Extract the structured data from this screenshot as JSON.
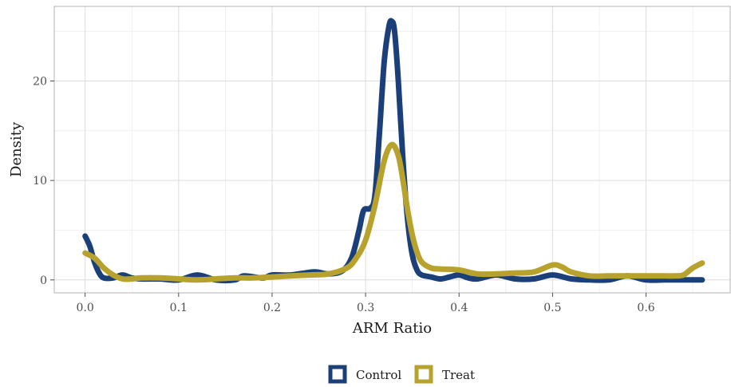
{
  "chart_data": {
    "type": "line",
    "title": "",
    "xlabel": "ARM Ratio",
    "ylabel": "Density",
    "xlim": [
      -0.033,
      0.69
    ],
    "ylim": [
      -1.3,
      27.5
    ],
    "x_ticks": [
      0.0,
      0.1,
      0.2,
      0.3,
      0.4,
      0.5,
      0.6
    ],
    "x_tick_labels": [
      "0.0",
      "0.1",
      "0.2",
      "0.3",
      "0.4",
      "0.5",
      "0.6"
    ],
    "y_ticks": [
      0,
      10,
      20
    ],
    "y_tick_labels": [
      "0",
      "10",
      "20"
    ],
    "x_minor_ticks": [
      0.05,
      0.15,
      0.25,
      0.35,
      0.45,
      0.55,
      0.65
    ],
    "y_minor_ticks": [
      5,
      15,
      25
    ],
    "grid": true,
    "legend_position": "bottom",
    "series": [
      {
        "name": "Control",
        "color": "#1b3f78",
        "x": [
          0.0,
          0.005,
          0.01,
          0.015,
          0.02,
          0.03,
          0.04,
          0.05,
          0.06,
          0.08,
          0.1,
          0.12,
          0.14,
          0.16,
          0.17,
          0.19,
          0.2,
          0.22,
          0.245,
          0.26,
          0.275,
          0.285,
          0.293,
          0.298,
          0.305,
          0.31,
          0.315,
          0.32,
          0.325,
          0.328,
          0.331,
          0.335,
          0.34,
          0.345,
          0.35,
          0.355,
          0.36,
          0.37,
          0.38,
          0.39,
          0.4,
          0.41,
          0.42,
          0.44,
          0.46,
          0.48,
          0.5,
          0.52,
          0.54,
          0.56,
          0.58,
          0.6,
          0.62,
          0.64,
          0.66
        ],
        "y": [
          4.4,
          3.4,
          1.8,
          0.7,
          0.2,
          0.2,
          0.5,
          0.2,
          0.1,
          0.1,
          0.0,
          0.5,
          0.0,
          0.0,
          0.4,
          0.2,
          0.5,
          0.5,
          0.8,
          0.6,
          0.9,
          2.2,
          5.0,
          7.0,
          7.2,
          8.5,
          15.0,
          22.0,
          25.5,
          26.0,
          25.0,
          20.0,
          12.0,
          6.0,
          2.5,
          1.0,
          0.5,
          0.3,
          0.1,
          0.3,
          0.5,
          0.2,
          0.1,
          0.5,
          0.1,
          0.1,
          0.5,
          0.1,
          0.0,
          0.0,
          0.4,
          0.0,
          0.0,
          0.0,
          0.0
        ]
      },
      {
        "name": "Treat",
        "color": "#b8a22e",
        "x": [
          0.0,
          0.01,
          0.02,
          0.03,
          0.04,
          0.05,
          0.06,
          0.08,
          0.1,
          0.12,
          0.14,
          0.16,
          0.18,
          0.2,
          0.22,
          0.24,
          0.26,
          0.28,
          0.29,
          0.3,
          0.31,
          0.32,
          0.328,
          0.335,
          0.34,
          0.345,
          0.35,
          0.355,
          0.36,
          0.37,
          0.38,
          0.4,
          0.42,
          0.44,
          0.46,
          0.48,
          0.5,
          0.51,
          0.52,
          0.54,
          0.56,
          0.58,
          0.6,
          0.62,
          0.63,
          0.64,
          0.65,
          0.66
        ],
        "y": [
          2.7,
          2.2,
          1.2,
          0.5,
          0.1,
          0.1,
          0.2,
          0.2,
          0.1,
          0.0,
          0.1,
          0.2,
          0.2,
          0.3,
          0.4,
          0.5,
          0.6,
          1.2,
          2.2,
          4.0,
          7.5,
          12.0,
          13.6,
          12.5,
          10.0,
          7.0,
          4.5,
          2.8,
          1.8,
          1.2,
          1.1,
          1.0,
          0.6,
          0.6,
          0.7,
          0.8,
          1.5,
          1.3,
          0.8,
          0.4,
          0.4,
          0.4,
          0.4,
          0.4,
          0.4,
          0.5,
          1.2,
          1.7
        ]
      }
    ]
  },
  "legend": {
    "items": [
      {
        "label": "Control",
        "color": "#1b3f78"
      },
      {
        "label": "Treat",
        "color": "#b8a22e"
      }
    ]
  }
}
